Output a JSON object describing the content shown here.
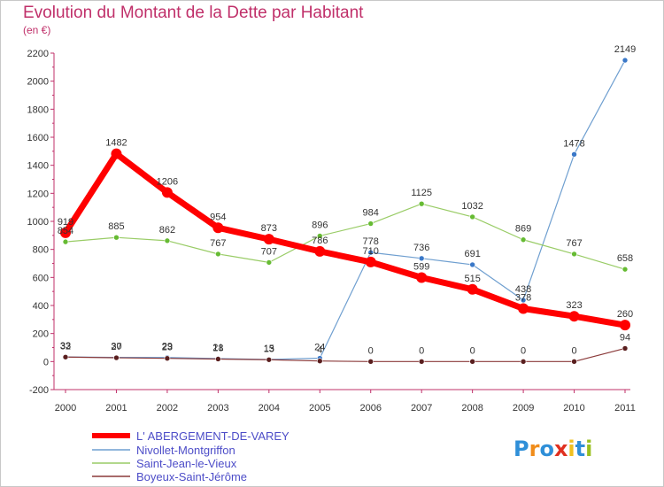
{
  "header": {
    "title": "Evolution du Montant de la Dette par Habitant",
    "subtitle": "(en €)"
  },
  "logo": {
    "letters": [
      "P",
      "r",
      "o",
      "x",
      "i",
      "t",
      "i"
    ],
    "colors": [
      "#2f8fd8",
      "#f08c1a",
      "#2f8fd8",
      "#e03020",
      "#f0c020",
      "#2f8fd8",
      "#9ac020"
    ]
  },
  "chart_data": {
    "type": "line",
    "title": "Evolution du Montant de la Dette par Habitant",
    "subtitle": "(en €)",
    "x": [
      "2000",
      "2001",
      "2002",
      "2003",
      "2004",
      "2005",
      "2006",
      "2007",
      "2008",
      "2009",
      "2010",
      "2011"
    ],
    "ylim": [
      -200,
      2200
    ],
    "yticks": [
      -200,
      0,
      200,
      400,
      600,
      800,
      1000,
      1200,
      1400,
      1600,
      1800,
      2000,
      2200
    ],
    "grid": false,
    "legend_position": "bottom-left",
    "series": [
      {
        "name": "L' ABERGEMENT-DE-VAREY",
        "color": "#ff0000",
        "marker_color": "#ff0000",
        "values": [
          919,
          1482,
          1206,
          954,
          873,
          786,
          710,
          599,
          515,
          378,
          323,
          260
        ],
        "labels": [
          "919",
          "1482",
          "1206",
          "954",
          "873",
          "786",
          "710",
          "599",
          "515",
          "378",
          "323",
          "260"
        ]
      },
      {
        "name": "Nivollet-Montgriffon",
        "color": "#6f9fd0",
        "marker_color": "#3a78c8",
        "values": [
          33,
          30,
          29,
          21,
          15,
          24,
          778,
          736,
          691,
          438,
          1478,
          2149
        ],
        "labels": [
          "33",
          "30",
          "29",
          "21",
          "15",
          "24",
          "778",
          "736",
          "691",
          "438",
          "1478",
          "2149"
        ]
      },
      {
        "name": "Saint-Jean-le-Vieux",
        "color": "#99cc66",
        "marker_color": "#66bb33",
        "values": [
          854,
          885,
          862,
          767,
          707,
          896,
          984,
          1125,
          1032,
          869,
          767,
          658
        ],
        "labels": [
          "854",
          "885",
          "862",
          "767",
          "707",
          "896",
          "984",
          "1125",
          "1032",
          "869",
          "767",
          "658"
        ]
      },
      {
        "name": "Boyeux-Saint-Jérôme",
        "color": "#8b3a3a",
        "marker_color": "#5a1f1f",
        "values": [
          32,
          27,
          23,
          18,
          13,
          4,
          0,
          0,
          0,
          0,
          0,
          94
        ],
        "labels": [
          "32",
          "27",
          "23",
          "18",
          "13",
          "4",
          "0",
          "0",
          "0",
          "0",
          "0",
          "94"
        ]
      }
    ]
  }
}
